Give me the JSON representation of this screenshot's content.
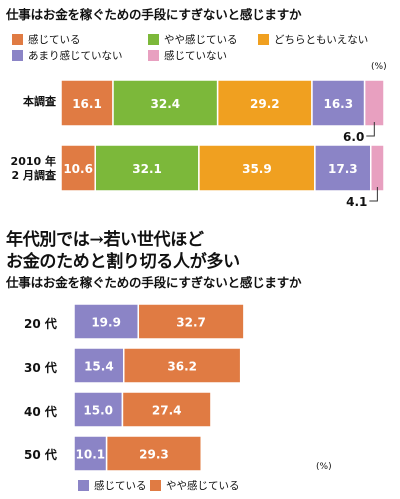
{
  "headline": {
    "line1": "年代別では→若い世代ほど",
    "line2": "お金のためと割り切る人が多い"
  },
  "chart_data": [
    {
      "type": "bar",
      "stacked": true,
      "orientation": "horizontal",
      "title": "仕事はお金を稼ぐための手段にすぎないと感じますか",
      "unit": "(%)",
      "categories": [
        "本調査",
        "2010 年\n2 月調査"
      ],
      "series": [
        {
          "name": "感じている",
          "color": "#e07b43",
          "values": [
            16.1,
            10.6
          ]
        },
        {
          "name": "やや感じている",
          "color": "#7cb83a",
          "values": [
            32.4,
            32.1
          ]
        },
        {
          "name": "どちらともいえない",
          "color": "#f0a020",
          "values": [
            29.2,
            35.9
          ]
        },
        {
          "name": "あまり感じていない",
          "color": "#8b84c6",
          "values": [
            16.3,
            17.3
          ]
        },
        {
          "name": "感じていない",
          "color": "#e8a0c0",
          "values": [
            6.0,
            4.1
          ]
        }
      ]
    },
    {
      "type": "bar",
      "stacked": true,
      "orientation": "horizontal",
      "title": "仕事はお金を稼ぐための手段にすぎないと感じますか",
      "unit": "(%)",
      "categories": [
        "20 代",
        "30 代",
        "40 代",
        "50 代"
      ],
      "series": [
        {
          "name": "感じている",
          "color": "#8b84c6",
          "values": [
            19.9,
            15.4,
            15.0,
            10.1
          ]
        },
        {
          "name": "やや感じている",
          "color": "#e07b43",
          "values": [
            32.7,
            36.2,
            27.4,
            29.3
          ]
        }
      ]
    }
  ]
}
